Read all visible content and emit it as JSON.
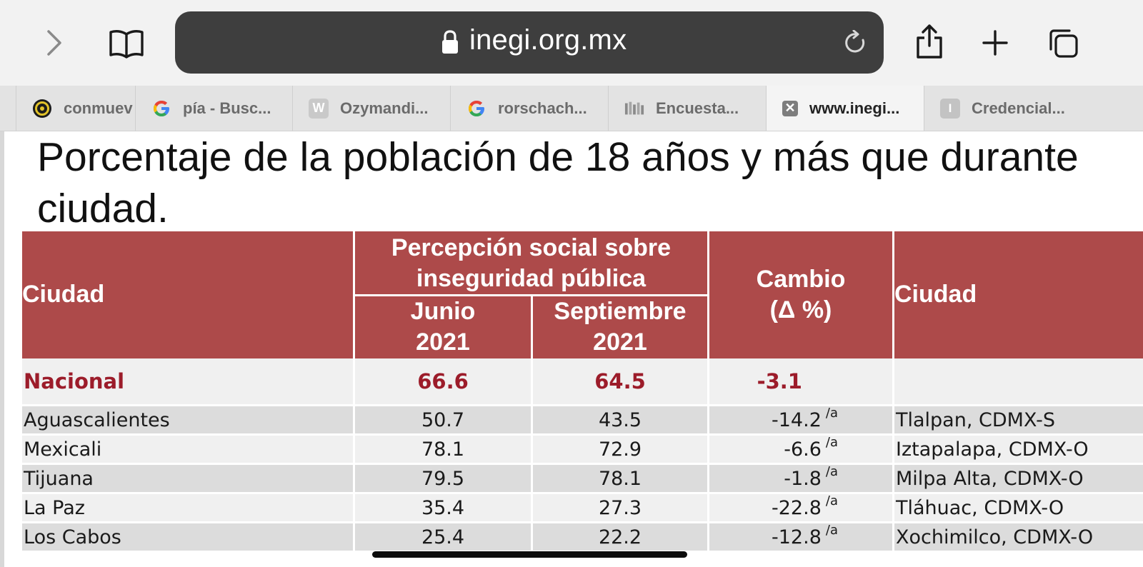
{
  "browser": {
    "url_domain": "inegi.org.mx",
    "icons": {
      "forward": "chevron-right-icon",
      "bookmarks": "book-icon",
      "lock": "lock-icon",
      "reload": "reload-icon",
      "share": "share-icon",
      "new_tab": "plus-icon",
      "tabs_overview": "tabs-icon"
    },
    "tabs": [
      {
        "label": "conmuev",
        "favicon": "circle-logo-icon"
      },
      {
        "label": "pía - Busc...",
        "favicon": "google-g-icon"
      },
      {
        "label": "Ozymandi...",
        "favicon": "w-letter-icon",
        "favicon_letter": "W"
      },
      {
        "label": "rorschach...",
        "favicon": "google-g-icon"
      },
      {
        "label": "Encuesta...",
        "favicon": "grid-favicon-icon"
      },
      {
        "label": "www.inegi...",
        "favicon": "close-tab-icon",
        "active": true
      },
      {
        "label": "Credencial...",
        "favicon": "i-letter-icon",
        "favicon_letter": "I"
      }
    ]
  },
  "page": {
    "heading_line1": "Porcentaje de la población de 18 años y más que durante",
    "heading_line2": "ciudad.",
    "table": {
      "header": {
        "ciudad": "Ciudad",
        "group_line1": "Percepción social sobre",
        "group_line2": "inseguridad pública",
        "junio_line1": "Junio",
        "junio_line2": "2021",
        "sep_line1": "Septiembre",
        "sep_line2": "2021",
        "cambio_line1": "Cambio",
        "cambio_line2": "(Δ %)",
        "ciudad2": "Ciudad"
      },
      "nacional": {
        "city": "Nacional",
        "junio": "66.6",
        "septiembre": "64.5",
        "cambio": "-3.1"
      },
      "rows": [
        {
          "city": "Aguascalientes",
          "junio": "50.7",
          "septiembre": "43.5",
          "cambio": "-14.2",
          "note": "/a",
          "city2": "Tlalpan, CDMX-S"
        },
        {
          "city": "Mexicali",
          "junio": "78.1",
          "septiembre": "72.9",
          "cambio": "-6.6",
          "note": "/a",
          "city2": "Iztapalapa, CDMX-O"
        },
        {
          "city": "Tijuana",
          "junio": "79.5",
          "septiembre": "78.1",
          "cambio": "-1.8",
          "note": "/a",
          "city2": "Milpa Alta, CDMX-O"
        },
        {
          "city": "La Paz",
          "junio": "35.4",
          "septiembre": "27.3",
          "cambio": "-22.8",
          "note": "/a",
          "city2": "Tláhuac, CDMX-O"
        },
        {
          "city": "Los Cabos",
          "junio": "25.4",
          "septiembre": "22.2",
          "cambio": "-12.8",
          "note": "/a",
          "city2": "Xochimilco, CDMX-O"
        }
      ]
    }
  },
  "colors": {
    "header_red": "#ad4a4a",
    "nacional_text": "#9c1c2a",
    "row_light": "#f0f0f0",
    "row_dark": "#dcdcdc"
  }
}
